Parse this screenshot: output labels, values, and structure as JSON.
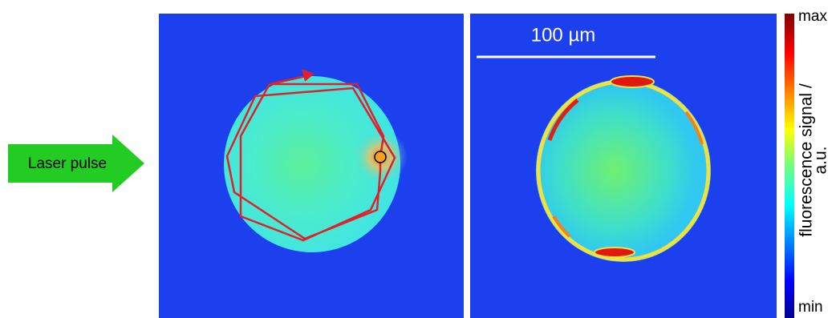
{
  "labels": {
    "laser": "Laser pulse",
    "scale_bar": "100 µm",
    "colorbar_max": "max",
    "colorbar_min": "min",
    "colorbar_title_line1": "fluorescence signal /",
    "colorbar_title_line2": "a.u."
  }
}
